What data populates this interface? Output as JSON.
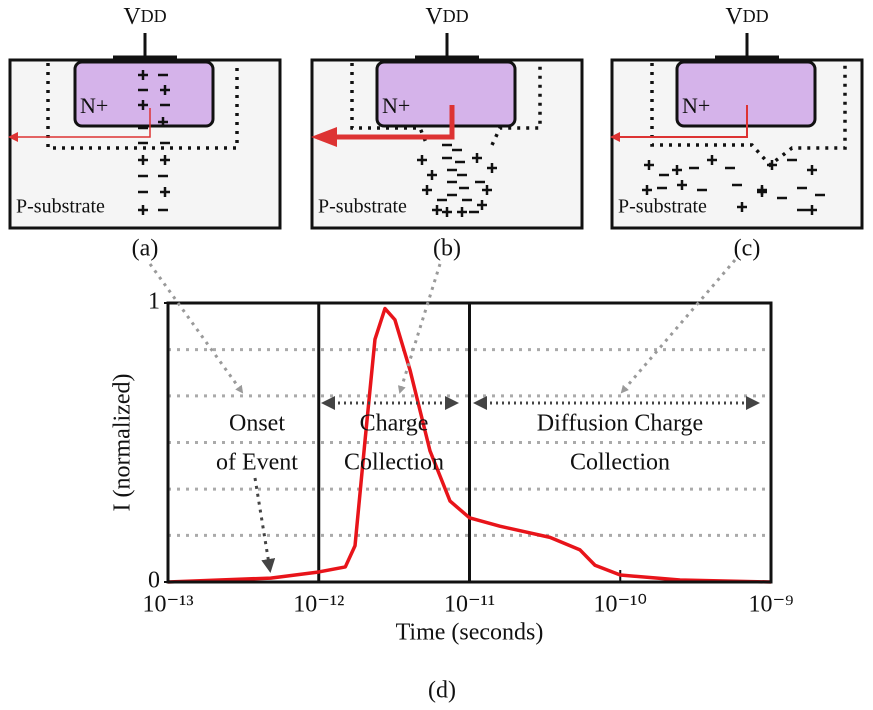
{
  "panels": [
    {
      "supply": "V",
      "supply_sub": "DD",
      "region": "N+",
      "substrate": "P-substrate",
      "caption": "(a)"
    },
    {
      "supply": "V",
      "supply_sub": "DD",
      "region": "N+",
      "substrate": "P-substrate",
      "caption": "(b)"
    },
    {
      "supply": "V",
      "supply_sub": "DD",
      "region": "N+",
      "substrate": "P-substrate",
      "caption": "(c)"
    }
  ],
  "chart_data": {
    "type": "line",
    "x": [
      1e-13,
      4.8e-13,
      1e-12,
      1.5e-12,
      1.74e-12,
      2.03e-12,
      2.36e-12,
      2.75e-12,
      3.2e-12,
      4.03e-12,
      5.47e-12,
      7.43e-12,
      1e-11,
      1.59e-11,
      3.42e-11,
      5.41e-11,
      6.8e-11,
      1e-10,
      2.49e-10,
      1e-09
    ],
    "values": [
      0,
      0.014,
      0.036,
      0.054,
      0.13,
      0.51,
      0.87,
      0.98,
      0.94,
      0.76,
      0.47,
      0.29,
      0.23,
      0.2,
      0.16,
      0.115,
      0.06,
      0.025,
      0.007,
      0
    ],
    "color": "#e8141a",
    "xlog": true,
    "xlim": [
      1e-13,
      1e-09
    ],
    "xticks": [
      {
        "value": 1e-13,
        "label": "10⁻¹³"
      },
      {
        "value": 1e-12,
        "label": "10⁻¹²"
      },
      {
        "value": 1e-11,
        "label": "10⁻¹¹"
      },
      {
        "value": 1e-10,
        "label": "10⁻¹⁰"
      },
      {
        "value": 1e-09,
        "label": "10⁻⁹"
      }
    ],
    "ylim": [
      0,
      1
    ],
    "yticks": [
      0,
      1
    ],
    "ygrid": [
      0.167,
      0.333,
      0.5,
      0.667,
      0.833
    ],
    "dividers": [
      1e-12,
      1e-11
    ],
    "xlabel": "Time (seconds)",
    "ylabel": "I (normalized)",
    "annotations": [
      {
        "lines": [
          "Onset",
          "of Event"
        ]
      },
      {
        "lines": [
          "Charge",
          "Collection"
        ]
      },
      {
        "lines": [
          "Diffusion Charge",
          "Collection"
        ]
      }
    ],
    "caption": "(d)"
  }
}
